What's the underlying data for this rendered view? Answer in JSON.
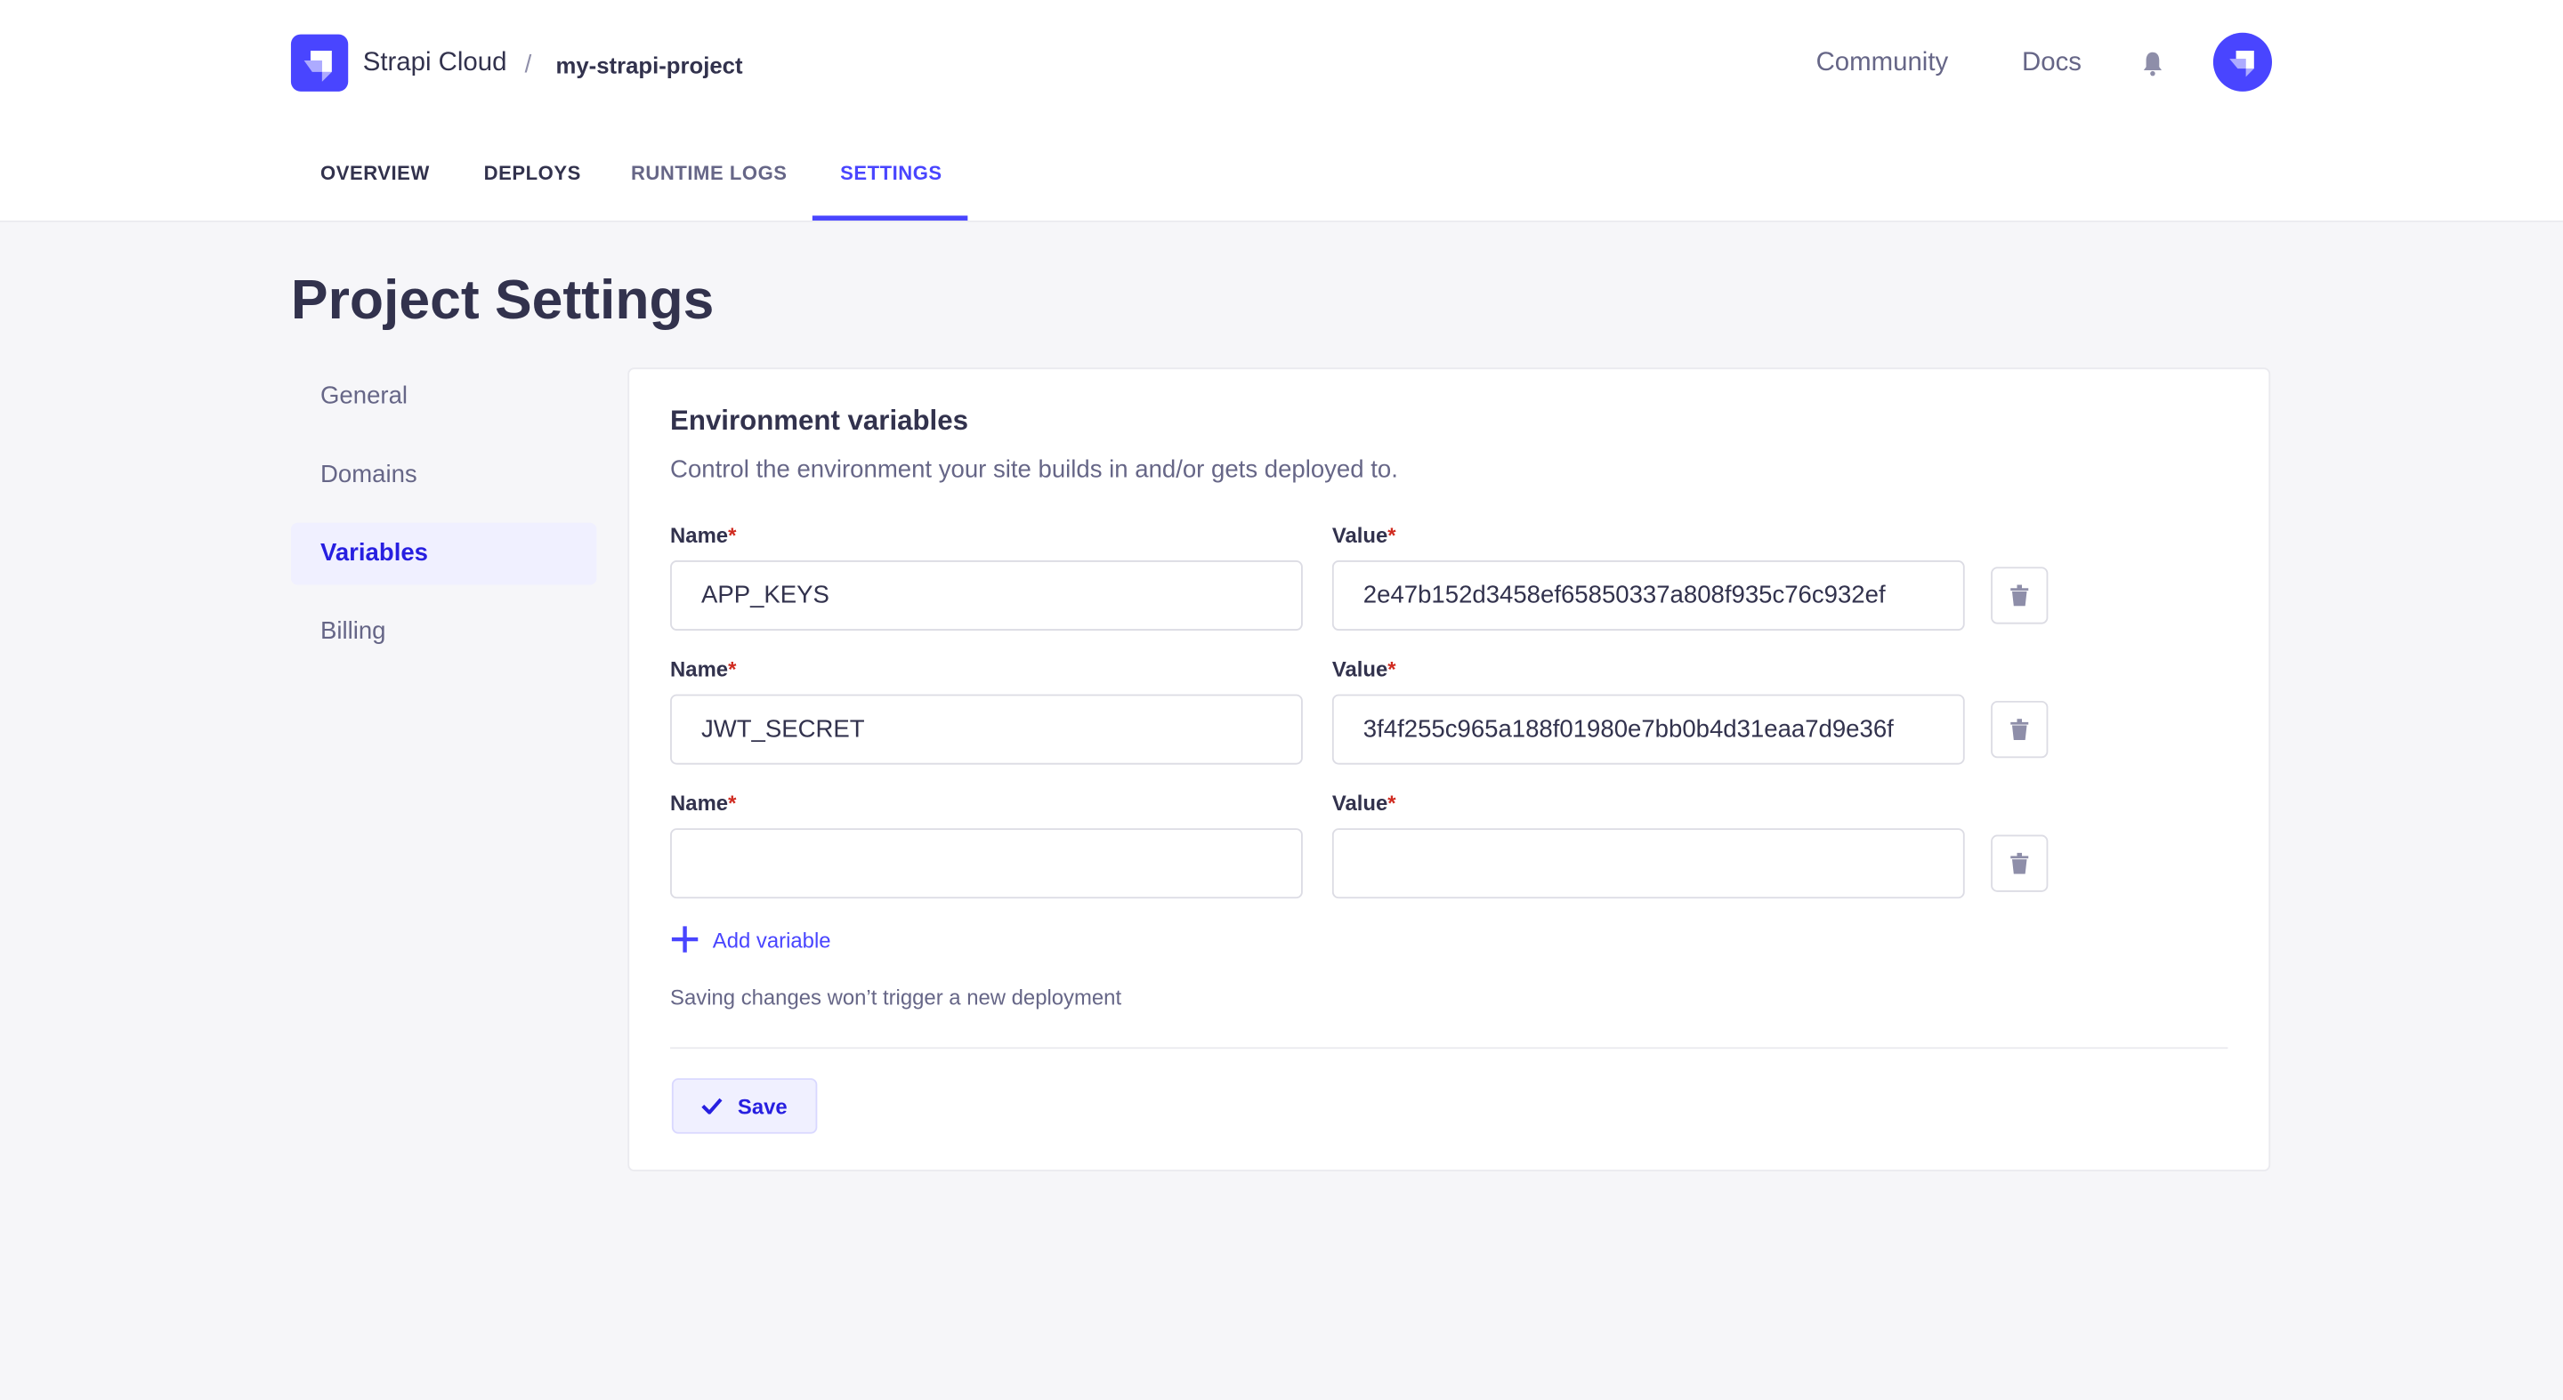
{
  "header": {
    "brand": "Strapi Cloud",
    "separator": "/",
    "project": "my-strapi-project",
    "links": [
      "Community",
      "Docs"
    ]
  },
  "tabs": [
    {
      "label": "OVERVIEW"
    },
    {
      "label": "DEPLOYS"
    },
    {
      "label": "RUNTIME LOGS"
    },
    {
      "label": "SETTINGS",
      "active": true
    }
  ],
  "page_title": "Project Settings",
  "sidebar": {
    "items": [
      {
        "label": "General"
      },
      {
        "label": "Domains"
      },
      {
        "label": "Variables",
        "active": true
      },
      {
        "label": "Billing"
      }
    ]
  },
  "env": {
    "title": "Environment variables",
    "description": "Control the environment your site builds in and/or gets deployed to.",
    "name_label": "Name",
    "value_label": "Value",
    "required_mark": "*",
    "rows": [
      {
        "name": "APP_KEYS",
        "value": "2e47b152d3458ef65850337a808f935c76c932ef"
      },
      {
        "name": "JWT_SECRET",
        "value": "3f4f255c965a188f01980e7bb0b4d31eaa7d9e36f"
      },
      {
        "name": "",
        "value": ""
      }
    ],
    "add_label": "Add variable",
    "note": "Saving changes won’t trigger a new deployment",
    "save_label": "Save"
  },
  "colors": {
    "accent": "#4945ff",
    "required": "#d02b20",
    "background": "#f6f6f9"
  }
}
